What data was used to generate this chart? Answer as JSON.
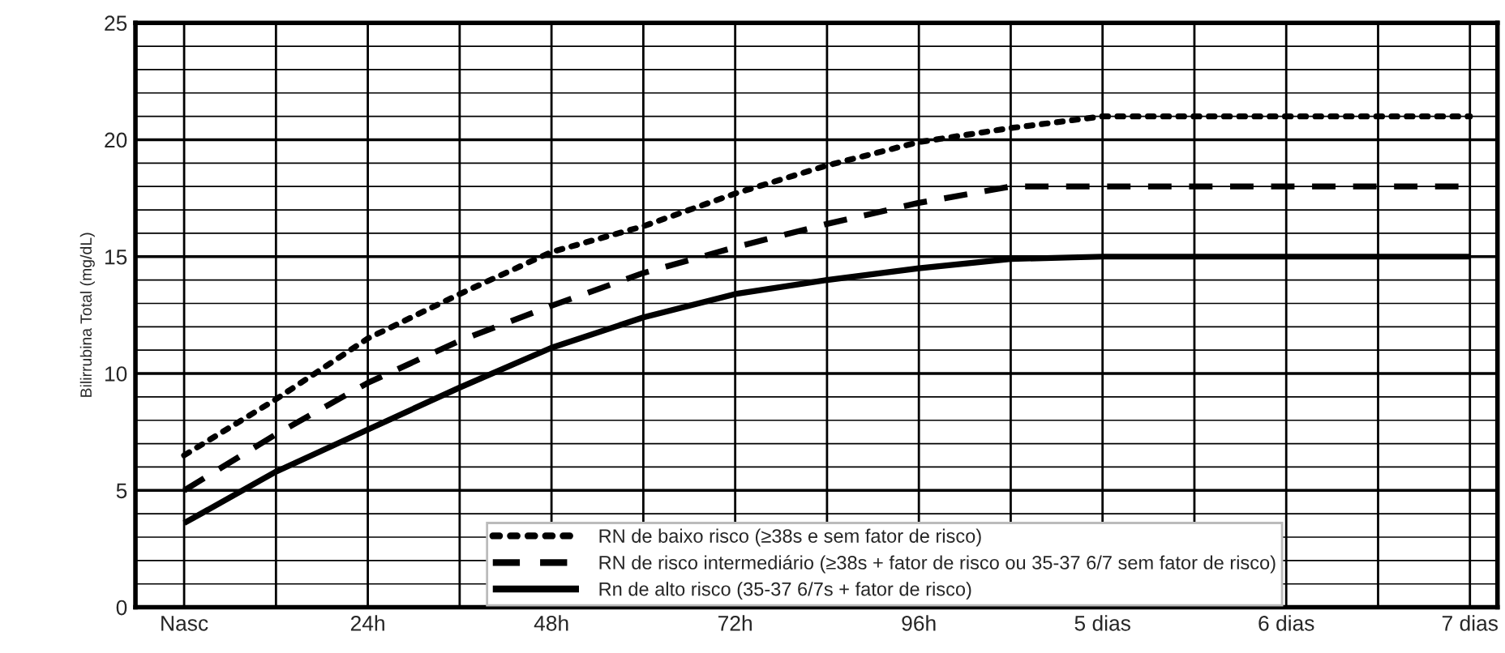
{
  "chart_data": {
    "type": "line",
    "ylabel": "Bilirrubina Total (mg/dL)",
    "categories": [
      "Nasc",
      null,
      "24h",
      null,
      "48h",
      null,
      "72h",
      null,
      "96h",
      null,
      "5 dias",
      null,
      "6 dias",
      null,
      "7 dias"
    ],
    "ylim": [
      0,
      25
    ],
    "yticks": [
      0,
      5,
      10,
      15,
      20,
      25
    ],
    "series": [
      {
        "name": "RN de baixo risco (≥38s e sem fator de risco)",
        "color": "#000000",
        "line_style": "dotted",
        "values": [
          6.5,
          8.9,
          11.5,
          13.4,
          15.2,
          16.3,
          17.7,
          18.9,
          19.9,
          20.5,
          21,
          21,
          21,
          21,
          21
        ]
      },
      {
        "name": "RN de risco intermediário (≥38s + fator de risco ou 35-37 6/7 sem fator de risco)",
        "color": "#000000",
        "line_style": "dashed",
        "values": [
          5,
          7.4,
          9.6,
          11.4,
          12.9,
          14.3,
          15.4,
          16.4,
          17.3,
          18,
          18,
          18,
          18,
          18,
          18
        ]
      },
      {
        "name": "Rn de alto risco (35-37 6/7s + fator de risco)",
        "color": "#000000",
        "line_style": "solid",
        "values": [
          3.6,
          5.8,
          7.6,
          9.4,
          11.1,
          12.4,
          13.4,
          14.0,
          14.5,
          14.9,
          15,
          15,
          15,
          15,
          15
        ]
      }
    ],
    "grid": true,
    "legend": "bottom"
  }
}
